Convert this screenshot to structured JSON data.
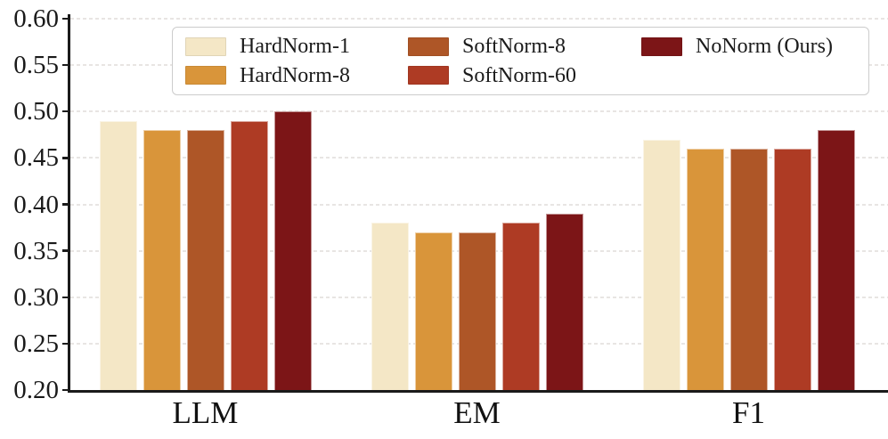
{
  "chart_data": {
    "type": "bar",
    "title": "",
    "xlabel": "",
    "ylabel": "",
    "categories": [
      "LLM",
      "EM",
      "F1"
    ],
    "series": [
      {
        "name": "HardNorm-1",
        "color": "#F4E7C6",
        "values": [
          0.49,
          0.38,
          0.47
        ]
      },
      {
        "name": "HardNorm-8",
        "color": "#D9953A",
        "values": [
          0.48,
          0.37,
          0.46
        ]
      },
      {
        "name": "SoftNorm-8",
        "color": "#AE5627",
        "values": [
          0.48,
          0.37,
          0.46
        ]
      },
      {
        "name": "SoftNorm-60",
        "color": "#AE3B24",
        "values": [
          0.49,
          0.38,
          0.46
        ]
      },
      {
        "name": "NoNorm (Ours)",
        "color": "#7C1517",
        "values": [
          0.5,
          0.39,
          0.48
        ]
      }
    ],
    "ylim": [
      0.2,
      0.6
    ],
    "ytick_step": 0.05,
    "ytick_labels": [
      "0.60",
      "0.55",
      "0.50",
      "0.45",
      "0.40",
      "0.35",
      "0.30",
      "0.25",
      "0.20"
    ],
    "grid": "horizontal-dashed",
    "legend_position": "upper-center",
    "legend_rows": 2,
    "colors": {
      "axis": "#1a1a1a",
      "gridline": "#e8e5e3",
      "background": "#ffffff",
      "legend_border": "#cccccc"
    }
  }
}
